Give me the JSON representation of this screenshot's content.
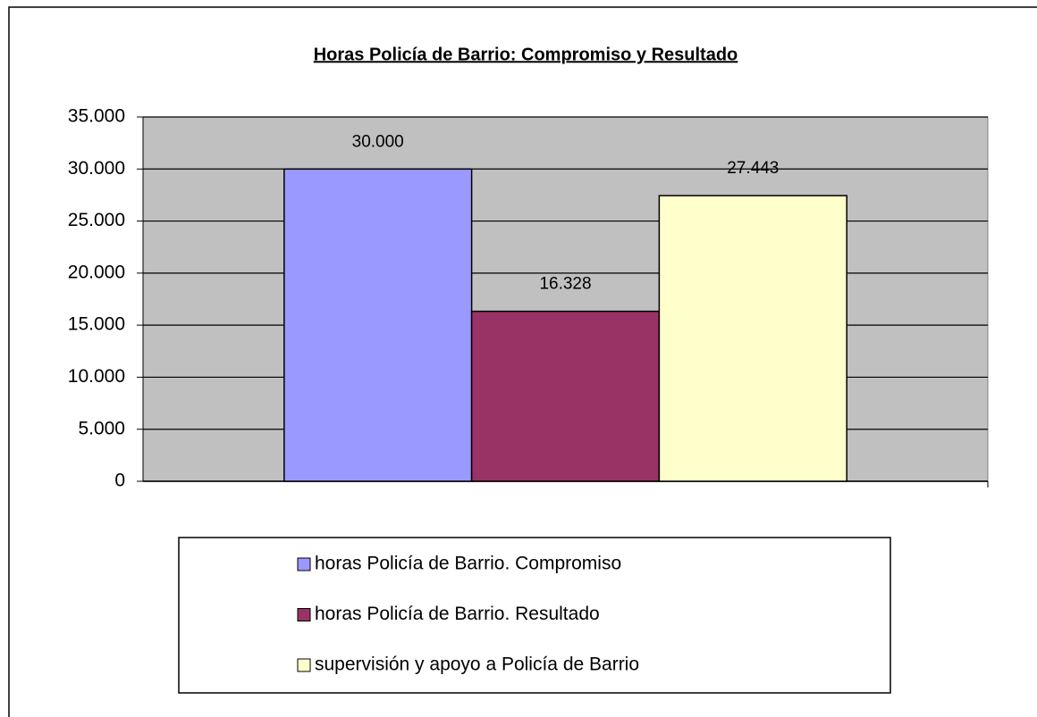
{
  "chart_data": {
    "type": "bar",
    "title": "Horas Policía de Barrio: Compromiso y Resultado",
    "categories": [
      null
    ],
    "series": [
      {
        "name": "horas Policía de Barrio. Compromiso",
        "color": "#9999ff",
        "values": [
          30000
        ],
        "value_labels": [
          "30.000"
        ]
      },
      {
        "name": "horas Policía de Barrio. Resultado",
        "color": "#993366",
        "values": [
          16328
        ],
        "value_labels": [
          "16.328"
        ]
      },
      {
        "name": "supervisión y apoyo a Policía de Barrio",
        "color": "#ffffcc",
        "values": [
          27443
        ],
        "value_labels": [
          "27.443"
        ]
      }
    ],
    "ylim": [
      0,
      35000
    ],
    "yticks": [
      0,
      {
        "value": 5000,
        "label": "5.000"
      },
      {
        "value": 10000,
        "label": "10.000"
      },
      {
        "value": 15000,
        "label": "15.000"
      },
      {
        "value": 20000,
        "label": "20.000"
      },
      {
        "value": 25000,
        "label": "25.000"
      },
      {
        "value": 30000,
        "label": "30.000"
      },
      {
        "value": 35000,
        "label": "35.000"
      }
    ],
    "grid": true,
    "plot_background": "#c0c0c0",
    "legend": "bottom"
  }
}
